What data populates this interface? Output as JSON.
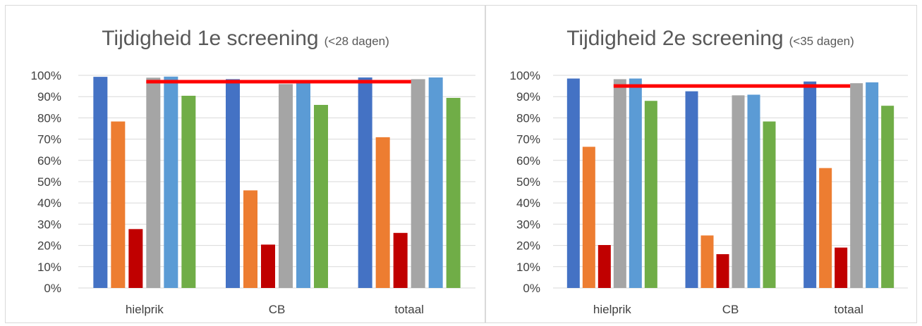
{
  "series_colors": [
    "#4472c4",
    "#ed7d31",
    "#c00000",
    "#a5a5a5",
    "#5b9bd5",
    "#70ad47"
  ],
  "target_line_color": "#ff0000",
  "chart_data": [
    {
      "type": "bar",
      "title": "Tijdigheid 1e screening",
      "title_note": "(<28 dagen)",
      "categories": [
        "hielprik",
        "CB",
        "totaal"
      ],
      "ytick_labels": [
        "0%",
        "10%",
        "20%",
        "30%",
        "40%",
        "50%",
        "60%",
        "70%",
        "80%",
        "90%",
        "100%"
      ],
      "ylim": [
        0,
        100
      ],
      "grid": true,
      "legend": "none",
      "series": [
        {
          "values": [
            99.3,
            98.2,
            99.0
          ]
        },
        {
          "values": [
            78.3,
            45.9,
            70.9
          ]
        },
        {
          "values": [
            27.7,
            20.4,
            25.9
          ]
        },
        {
          "values": [
            98.9,
            95.9,
            98.2
          ]
        },
        {
          "values": [
            99.4,
            96.2,
            99.0
          ]
        },
        {
          "values": [
            90.4,
            86.1,
            89.4
          ]
        }
      ],
      "target_line": {
        "value": 97,
        "from_category": "hielprik",
        "to_category": "totaal"
      }
    },
    {
      "type": "bar",
      "title": "Tijdigheid 2e screening",
      "title_note": "(<35 dagen)",
      "categories": [
        "hielprik",
        "CB",
        "totaal"
      ],
      "ytick_labels": [
        "0%",
        "10%",
        "20%",
        "30%",
        "40%",
        "50%",
        "60%",
        "70%",
        "80%",
        "90%",
        "100%"
      ],
      "ylim": [
        0,
        100
      ],
      "grid": true,
      "legend": "none",
      "series": [
        {
          "values": [
            98.5,
            92.5,
            97.1
          ]
        },
        {
          "values": [
            66.4,
            24.7,
            56.4
          ]
        },
        {
          "values": [
            20.2,
            15.9,
            19.0
          ]
        },
        {
          "values": [
            98.2,
            90.6,
            96.3
          ]
        },
        {
          "values": [
            98.5,
            90.9,
            96.7
          ]
        },
        {
          "values": [
            88.0,
            78.3,
            85.7
          ]
        }
      ],
      "target_line": {
        "value": 95,
        "from_category": "hielprik",
        "to_category": "totaal"
      }
    }
  ]
}
